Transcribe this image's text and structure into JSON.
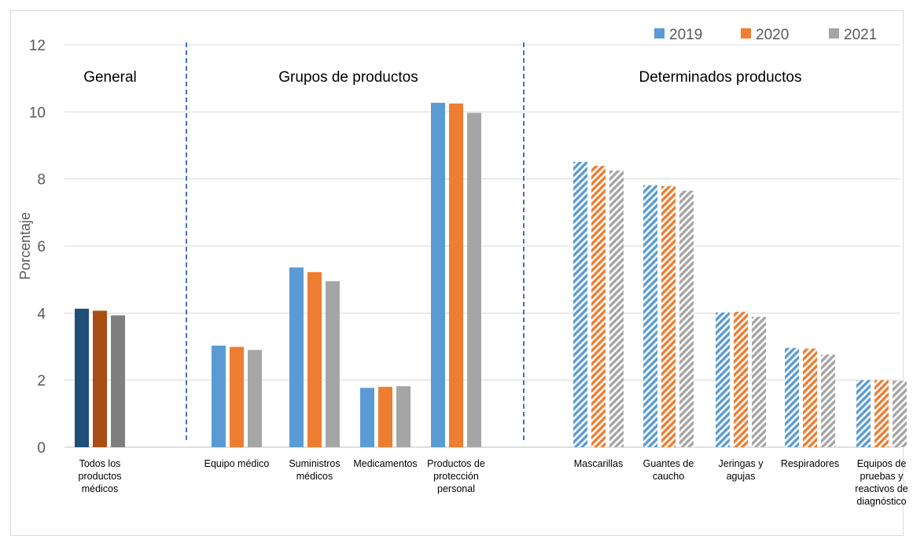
{
  "chart_data": {
    "type": "bar",
    "ylabel": "Porcentaje",
    "ylim": [
      0,
      12
    ],
    "yticks": [
      0,
      2,
      4,
      6,
      8,
      10,
      12
    ],
    "grid": true,
    "legend_position": "top-right",
    "series": [
      {
        "name": "2019",
        "color": "#5b9bd5",
        "general_color": "#1f4e79"
      },
      {
        "name": "2020",
        "color": "#ed7d31",
        "general_color": "#a84e14"
      },
      {
        "name": "2021",
        "color": "#a5a5a5",
        "general_color": "#7f7f7f"
      }
    ],
    "sections": [
      {
        "label": "General"
      },
      {
        "label": "Grupos de productos"
      },
      {
        "label": "Determinados productos"
      }
    ],
    "categories": [
      {
        "label": [
          "Todos los",
          "productos",
          "médicos"
        ],
        "values": [
          4.13,
          4.07,
          3.93
        ],
        "style": "general",
        "section": 0
      },
      {
        "label": [
          "Equipo médico"
        ],
        "values": [
          3.03,
          2.99,
          2.9
        ],
        "style": "solid",
        "section": 1
      },
      {
        "label": [
          "Suministros",
          "médicos"
        ],
        "values": [
          5.36,
          5.22,
          4.95
        ],
        "style": "solid",
        "section": 1
      },
      {
        "label": [
          "Medicamentos"
        ],
        "values": [
          1.77,
          1.8,
          1.82
        ],
        "style": "solid",
        "section": 1
      },
      {
        "label": [
          "Productos de",
          "protección",
          "personal"
        ],
        "values": [
          10.27,
          10.25,
          9.97
        ],
        "style": "solid",
        "section": 1
      },
      {
        "label": [
          "Mascarillas"
        ],
        "values": [
          8.51,
          8.39,
          8.25
        ],
        "style": "hatched",
        "section": 2
      },
      {
        "label": [
          "Guantes de",
          "caucho"
        ],
        "values": [
          7.81,
          7.79,
          7.65
        ],
        "style": "hatched",
        "section": 2
      },
      {
        "label": [
          "Jeringas y",
          "agujas"
        ],
        "values": [
          4.02,
          4.04,
          3.89
        ],
        "style": "hatched",
        "section": 2
      },
      {
        "label": [
          "Respiradores"
        ],
        "values": [
          2.96,
          2.94,
          2.76
        ],
        "style": "hatched",
        "section": 2
      },
      {
        "label": [
          "Equipos de",
          "pruebas y",
          "reactivos de",
          "diagnóstico"
        ],
        "values": [
          2.0,
          2.0,
          1.98
        ],
        "style": "hatched",
        "section": 2
      }
    ]
  }
}
